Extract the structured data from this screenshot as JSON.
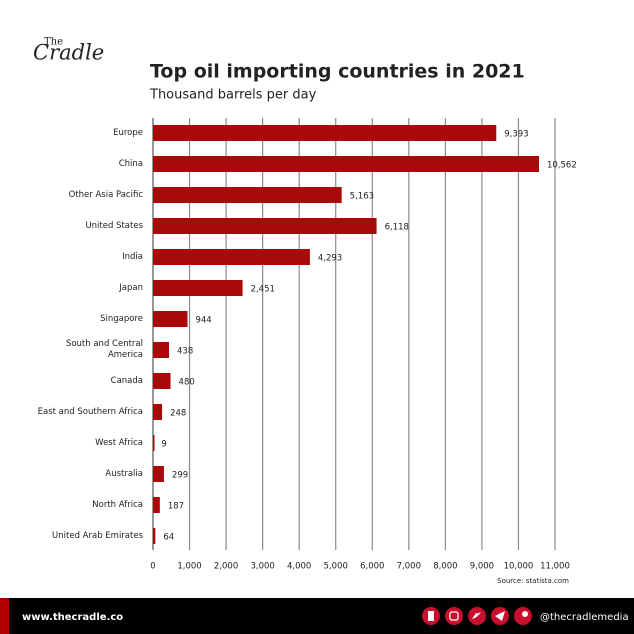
{
  "logo": {
    "top": "The",
    "main": "Cradle"
  },
  "chart_data": {
    "type": "bar",
    "orientation": "horizontal",
    "title": "Top oil importing countries in 2021",
    "subtitle": "Thousand barrels per day",
    "categories": [
      "Europe",
      "China",
      "Other Asia Pacific",
      "United States",
      "India",
      "Japan",
      "Singapore",
      "South and Central America",
      "Canada",
      "East and Southern Africa",
      "West Africa",
      "Australia",
      "North Africa",
      "United Arab Emirates"
    ],
    "values": [
      9393,
      10562,
      5163,
      6118,
      4293,
      2451,
      944,
      438,
      480,
      248,
      9,
      299,
      187,
      64
    ],
    "value_labels": [
      "9,393",
      "10,562",
      "5,163",
      "6,118",
      "4,293",
      "2,451",
      "944",
      "438",
      "480",
      "248",
      "9",
      "299",
      "187",
      "64"
    ],
    "color": "#a80a0a",
    "xlim": [
      0,
      11000
    ],
    "xticks": [
      0,
      {
        "value": 1000,
        "label": "1,000"
      },
      {
        "value": 2000,
        "label": "2,000"
      },
      {
        "value": 3000,
        "label": "3,000"
      },
      {
        "value": 4000,
        "label": "4,000"
      },
      {
        "value": 5000,
        "label": "5,000"
      },
      {
        "value": 6000,
        "label": "6,000"
      },
      {
        "value": 7000,
        "label": "7,000"
      },
      {
        "value": 8000,
        "label": "8,000"
      },
      {
        "value": 9000,
        "label": "9,000"
      },
      {
        "value": 10000,
        "label": "10,000"
      },
      {
        "value": 11000,
        "label": "11,000"
      }
    ],
    "grid": true,
    "source": "Source: statista.com"
  },
  "footer": {
    "website": "www.thecradle.co",
    "handle": "@thecradlemedia"
  }
}
